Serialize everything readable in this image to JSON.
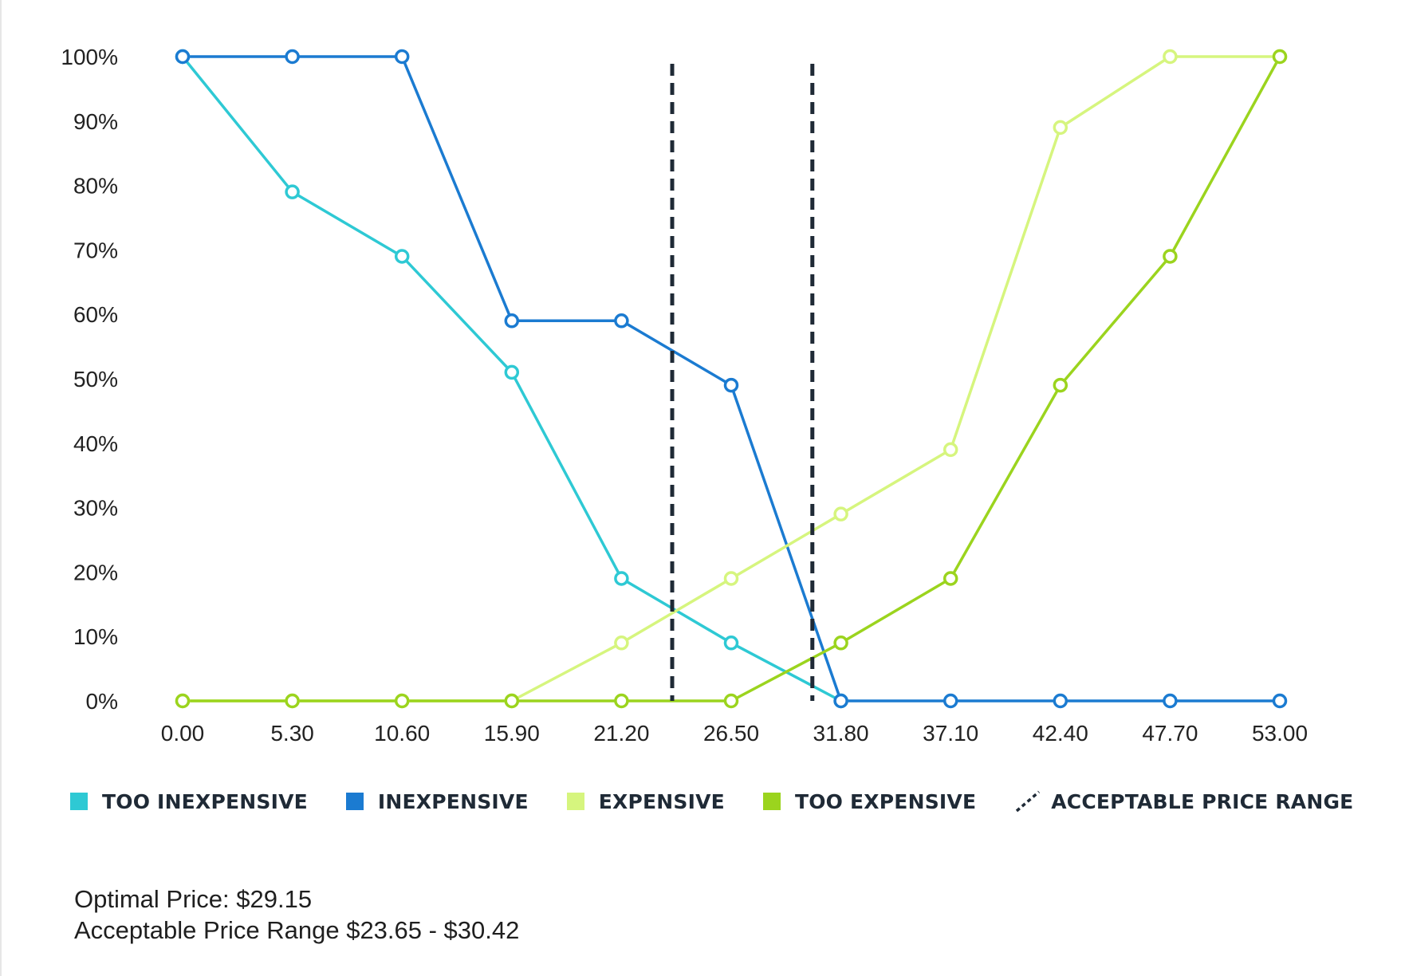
{
  "chart_data": {
    "type": "line",
    "x": [
      "0.00",
      "5.30",
      "10.60",
      "15.90",
      "21.20",
      "26.50",
      "31.80",
      "37.10",
      "42.40",
      "47.70",
      "53.00"
    ],
    "y_ticks": [
      "0%",
      "10%",
      "20%",
      "30%",
      "40%",
      "50%",
      "60%",
      "70%",
      "80%",
      "90%",
      "100%"
    ],
    "ylim": [
      0,
      100
    ],
    "series": [
      {
        "name": "TOO INEXPENSIVE",
        "color": "#2ec9d4",
        "values": [
          100,
          79,
          69,
          51,
          19,
          9,
          0,
          null,
          null,
          null,
          null
        ]
      },
      {
        "name": "INEXPENSIVE",
        "color": "#1b7bd1",
        "values": [
          100,
          100,
          100,
          59,
          59,
          49,
          0,
          0,
          0,
          0,
          0
        ]
      },
      {
        "name": "EXPENSIVE",
        "color": "#d6f57e",
        "values": [
          0,
          0,
          0,
          0,
          9,
          19,
          29,
          39,
          89,
          100,
          100
        ]
      },
      {
        "name": "TOO EXPENSIVE",
        "color": "#9bd41e",
        "values": [
          0,
          0,
          0,
          0,
          0,
          0,
          9,
          19,
          49,
          69,
          100
        ]
      }
    ],
    "acceptable_range": {
      "name": "ACCEPTABLE PRICE RANGE",
      "color": "#1f2a36",
      "low": 23.65,
      "high": 30.42
    },
    "grid": false,
    "legend_position": "bottom"
  },
  "notes": {
    "optimal_price": "Optimal Price: $29.15",
    "acceptable_range": "Acceptable Price Range $23.65 - $30.42"
  }
}
